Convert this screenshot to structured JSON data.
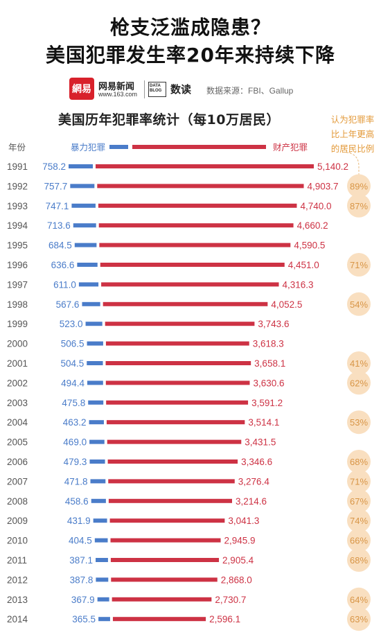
{
  "headline": {
    "line1": "枪支泛滥成隐患？",
    "line2": "美国犯罪发生率20年来持续下降"
  },
  "credits": {
    "logo_text": "網易",
    "brand_name": "网易新闻",
    "brand_url": "www.163.com",
    "datablog_label": "DATA BLOG",
    "datablog_name": "数读",
    "source": "数据来源：FBI、Gallup"
  },
  "side_note": {
    "line1": "认为犯罪率",
    "line2": "比上年更高",
    "line3": "的居民比例"
  },
  "colors": {
    "violent": "#4a7cc9",
    "property": "#cd3244",
    "bubble": "#f9dfc0",
    "bubble_text": "#d89546",
    "year_text": "#555555",
    "dashed_line": "#e8b878"
  },
  "chart_data": {
    "type": "bar",
    "title": "美国历年犯罪率统计（每10万居民）",
    "year_header": "年份",
    "categories": [
      "1991",
      "1992",
      "1993",
      "1994",
      "1995",
      "1996",
      "1997",
      "1998",
      "1999",
      "2000",
      "2001",
      "2002",
      "2003",
      "2004",
      "2005",
      "2006",
      "2007",
      "2008",
      "2009",
      "2010",
      "2011",
      "2012",
      "2013",
      "2014"
    ],
    "series": [
      {
        "name": "暴力犯罪",
        "values": [
          758.2,
          757.7,
          747.1,
          713.6,
          684.5,
          636.6,
          611.0,
          567.6,
          523.0,
          506.5,
          504.5,
          494.4,
          475.8,
          463.2,
          469.0,
          479.3,
          471.8,
          458.6,
          431.9,
          404.5,
          387.1,
          387.8,
          367.9,
          365.5
        ],
        "labels": [
          "758.2",
          "757.7",
          "747.1",
          "713.6",
          "684.5",
          "636.6",
          "611.0",
          "567.6",
          "523.0",
          "506.5",
          "504.5",
          "494.4",
          "475.8",
          "463.2",
          "469.0",
          "479.3",
          "471.8",
          "458.6",
          "431.9",
          "404.5",
          "387.1",
          "387.8",
          "367.9",
          "365.5"
        ]
      },
      {
        "name": "财产犯罪",
        "values": [
          5140.2,
          4903.7,
          4740.0,
          4660.2,
          4590.5,
          4451.0,
          4316.3,
          4052.5,
          3743.6,
          3618.3,
          3658.1,
          3630.6,
          3591.2,
          3514.1,
          3431.5,
          3346.6,
          3276.4,
          3214.6,
          3041.3,
          2945.9,
          2905.4,
          2868.0,
          2730.7,
          2596.1
        ],
        "labels": [
          "5,140.2",
          "4,903.7",
          "4,740.0",
          "4,660.2",
          "4,590.5",
          "4,451.0",
          "4,316.3",
          "4,052.5",
          "3,743.6",
          "3,618.3",
          "3,658.1",
          "3,630.6",
          "3,591.2",
          "3,514.1",
          "3,431.5",
          "3,346.6",
          "3,276.4",
          "3,214.6",
          "3,041.3",
          "2,945.9",
          "2,905.4",
          "2,868.0",
          "2,730.7",
          "2,596.1"
        ]
      }
    ],
    "perception_percent": [
      null,
      "89%",
      "87%",
      null,
      null,
      "71%",
      null,
      "54%",
      null,
      null,
      "41%",
      "62%",
      null,
      "53%",
      null,
      "68%",
      "71%",
      "67%",
      "74%",
      "66%",
      "68%",
      null,
      "64%",
      "63%"
    ]
  }
}
